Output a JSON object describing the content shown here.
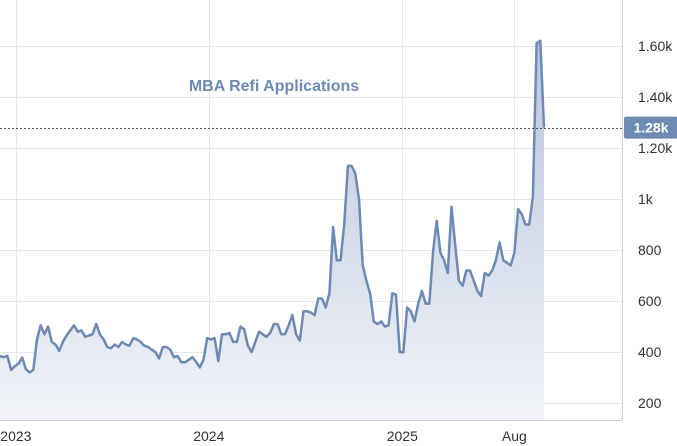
{
  "chart_data": {
    "type": "area",
    "title": "MBA Refi Applications",
    "xlabel": "",
    "ylabel": "",
    "ylim": [
      134,
      1780
    ],
    "y_ticks": [
      200,
      400,
      600,
      800,
      1000,
      1200,
      1400,
      1600
    ],
    "y_tick_labels": [
      "200",
      "400",
      "600",
      "800",
      "1k",
      "1.20k",
      "1.40k",
      "1.60k"
    ],
    "x_tick_labels": [
      "2023",
      "2024",
      "2025",
      "Aug"
    ],
    "x_tick_dates": [
      "2023-01-01",
      "2024-01-01",
      "2025-01-01",
      "2025-08-01"
    ],
    "last_value": 1280,
    "last_value_label": "1.28k",
    "grid": true,
    "line_color": "#6d8ab4",
    "fill_top_color": "#b9c6db",
    "fill_bottom_color": "#f1f3f8",
    "badge_color": "#6d8ab4",
    "series": [
      {
        "x": [
          "2022-12-02",
          "2022-12-09",
          "2022-12-16",
          "2022-12-23",
          "2022-12-30",
          "2023-01-06",
          "2023-01-13",
          "2023-01-20",
          "2023-01-27",
          "2023-02-03",
          "2023-02-10",
          "2023-02-17",
          "2023-02-24",
          "2023-03-03",
          "2023-03-10",
          "2023-03-17",
          "2023-03-24",
          "2023-03-31",
          "2023-04-07",
          "2023-04-14",
          "2023-04-21",
          "2023-04-28",
          "2023-05-05",
          "2023-05-12",
          "2023-05-19",
          "2023-05-26",
          "2023-06-02",
          "2023-06-09",
          "2023-06-16",
          "2023-06-23",
          "2023-06-30",
          "2023-07-07",
          "2023-07-14",
          "2023-07-21",
          "2023-07-28",
          "2023-08-04",
          "2023-08-11",
          "2023-08-18",
          "2023-08-25",
          "2023-09-01",
          "2023-09-08",
          "2023-09-15",
          "2023-09-22",
          "2023-09-29",
          "2023-10-06",
          "2023-10-13",
          "2023-10-20",
          "2023-10-27",
          "2023-11-03",
          "2023-11-10",
          "2023-11-17",
          "2023-11-24",
          "2023-12-01",
          "2023-12-08",
          "2023-12-15",
          "2023-12-22",
          "2023-12-29",
          "2024-01-05",
          "2024-01-12",
          "2024-01-19",
          "2024-01-26",
          "2024-02-02",
          "2024-02-09",
          "2024-02-16",
          "2024-02-23",
          "2024-03-01",
          "2024-03-08",
          "2024-03-15",
          "2024-03-22",
          "2024-03-29",
          "2024-04-05",
          "2024-04-12",
          "2024-04-19",
          "2024-04-26",
          "2024-05-03",
          "2024-05-10",
          "2024-05-17",
          "2024-05-24",
          "2024-05-31",
          "2024-06-07",
          "2024-06-14",
          "2024-06-21",
          "2024-06-28",
          "2024-07-05",
          "2024-07-12",
          "2024-07-19",
          "2024-07-26",
          "2024-08-02",
          "2024-08-09",
          "2024-08-16",
          "2024-08-23",
          "2024-08-30",
          "2024-09-06",
          "2024-09-13",
          "2024-09-20",
          "2024-09-27",
          "2024-10-04",
          "2024-10-11",
          "2024-10-18",
          "2024-10-25",
          "2024-11-01",
          "2024-11-08",
          "2024-11-15",
          "2024-11-22",
          "2024-11-29",
          "2024-12-06",
          "2024-12-13",
          "2024-12-20",
          "2024-12-27",
          "2025-01-03",
          "2025-01-10",
          "2025-01-17",
          "2025-01-24",
          "2025-01-31",
          "2025-02-07",
          "2025-02-14",
          "2025-02-21",
          "2025-02-28",
          "2025-03-07",
          "2025-03-14",
          "2025-03-21",
          "2025-03-28",
          "2025-04-04",
          "2025-04-11",
          "2025-04-18",
          "2025-04-25",
          "2025-05-02",
          "2025-05-09",
          "2025-05-16",
          "2025-05-23",
          "2025-05-30",
          "2025-06-06",
          "2025-06-13",
          "2025-06-20",
          "2025-06-27",
          "2025-07-04",
          "2025-07-11",
          "2025-07-18",
          "2025-07-25",
          "2025-08-01",
          "2025-08-08",
          "2025-08-15",
          "2025-08-22",
          "2025-08-29",
          "2025-09-05",
          "2025-09-12",
          "2025-09-19",
          "2025-09-26"
        ],
        "values": [
          385,
          380,
          385,
          330,
          345,
          355,
          378,
          333,
          320,
          330,
          450,
          505,
          470,
          500,
          440,
          430,
          405,
          440,
          465,
          485,
          505,
          480,
          485,
          460,
          465,
          470,
          510,
          470,
          450,
          420,
          415,
          430,
          420,
          440,
          430,
          425,
          455,
          450,
          440,
          425,
          420,
          410,
          400,
          375,
          420,
          420,
          410,
          380,
          385,
          360,
          360,
          370,
          380,
          362,
          340,
          370,
          455,
          450,
          455,
          365,
          470,
          470,
          475,
          440,
          440,
          500,
          490,
          425,
          400,
          440,
          480,
          470,
          460,
          475,
          510,
          510,
          470,
          470,
          505,
          545,
          470,
          445,
          560,
          560,
          555,
          545,
          610,
          610,
          575,
          630,
          890,
          760,
          760,
          900,
          1130,
          1130,
          1100,
          1000,
          740,
          680,
          630,
          520,
          510,
          520,
          500,
          505,
          630,
          625,
          400,
          400,
          575,
          560,
          520,
          590,
          640,
          590,
          590,
          790,
          915,
          790,
          760,
          710,
          970,
          820,
          680,
          660,
          720,
          720,
          680,
          640,
          620,
          710,
          700,
          720,
          760,
          830,
          760,
          750,
          740,
          790,
          960,
          940,
          900,
          900,
          1010,
          1610,
          1620,
          1280
        ]
      }
    ]
  }
}
